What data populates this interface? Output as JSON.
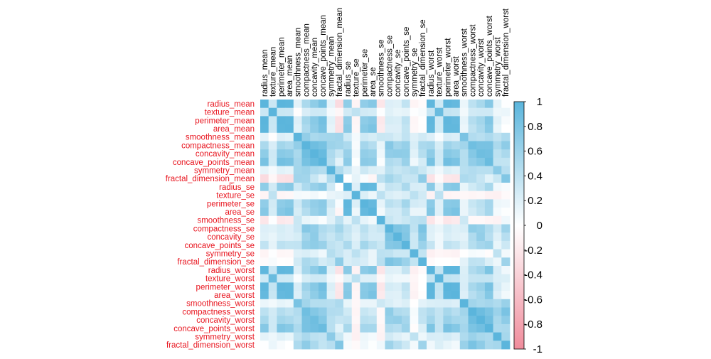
{
  "chart_data": {
    "type": "heatmap",
    "title": "",
    "variables": [
      "radius_mean",
      "texture_mean",
      "perimeter_mean",
      "area_mean",
      "smoothness_mean",
      "compactness_mean",
      "concavity_mean",
      "concave_points_mean",
      "symmetry_mean",
      "fractal_dimension_mean",
      "radius_se",
      "texture_se",
      "perimeter_se",
      "area_se",
      "smoothness_se",
      "compactness_se",
      "concavity_se",
      "concave_points_se",
      "symmetry_se",
      "fractal_dimension_se",
      "radius_worst",
      "texture_worst",
      "perimeter_worst",
      "area_worst",
      "smoothness_worst",
      "compactness_worst",
      "concavity_worst",
      "concave_points_worst",
      "symmetry_worst",
      "fractal_dimension_worst"
    ],
    "matrix": [
      [
        1.0,
        0.32,
        1.0,
        0.99,
        0.17,
        0.51,
        0.68,
        0.82,
        0.15,
        -0.31,
        0.68,
        -0.1,
        0.67,
        0.74,
        -0.22,
        0.21,
        0.19,
        0.38,
        -0.1,
        -0.04,
        0.97,
        0.3,
        0.97,
        0.94,
        0.12,
        0.41,
        0.53,
        0.74,
        0.16,
        0.01
      ],
      [
        0.32,
        1.0,
        0.33,
        0.32,
        -0.02,
        0.24,
        0.3,
        0.29,
        0.07,
        -0.08,
        0.28,
        0.39,
        0.28,
        0.26,
        0.01,
        0.19,
        0.14,
        0.16,
        0.01,
        0.05,
        0.35,
        0.91,
        0.36,
        0.34,
        0.08,
        0.28,
        0.3,
        0.3,
        0.11,
        0.12
      ],
      [
        1.0,
        0.33,
        1.0,
        0.99,
        0.21,
        0.56,
        0.72,
        0.85,
        0.18,
        -0.26,
        0.69,
        -0.09,
        0.69,
        0.74,
        -0.2,
        0.25,
        0.23,
        0.41,
        -0.08,
        -0.01,
        0.97,
        0.3,
        0.97,
        0.94,
        0.15,
        0.46,
        0.56,
        0.77,
        0.19,
        0.05
      ],
      [
        0.99,
        0.32,
        0.99,
        1.0,
        0.18,
        0.5,
        0.69,
        0.82,
        0.15,
        -0.28,
        0.73,
        -0.07,
        0.73,
        0.8,
        -0.17,
        0.21,
        0.21,
        0.37,
        -0.07,
        -0.02,
        0.96,
        0.29,
        0.96,
        0.96,
        0.12,
        0.39,
        0.51,
        0.72,
        0.14,
        0.0
      ],
      [
        0.17,
        -0.02,
        0.21,
        0.18,
        1.0,
        0.66,
        0.52,
        0.55,
        0.56,
        0.58,
        0.3,
        0.07,
        0.3,
        0.25,
        0.33,
        0.32,
        0.25,
        0.38,
        0.2,
        0.28,
        0.21,
        0.04,
        0.24,
        0.21,
        0.81,
        0.47,
        0.43,
        0.5,
        0.39,
        0.5
      ],
      [
        0.51,
        0.24,
        0.56,
        0.5,
        0.66,
        1.0,
        0.88,
        0.83,
        0.6,
        0.57,
        0.5,
        0.05,
        0.55,
        0.46,
        0.14,
        0.74,
        0.57,
        0.64,
        0.23,
        0.51,
        0.54,
        0.25,
        0.59,
        0.51,
        0.57,
        0.87,
        0.82,
        0.82,
        0.51,
        0.69
      ],
      [
        0.68,
        0.3,
        0.72,
        0.69,
        0.52,
        0.88,
        1.0,
        0.92,
        0.5,
        0.34,
        0.63,
        0.08,
        0.66,
        0.62,
        0.1,
        0.67,
        0.69,
        0.68,
        0.18,
        0.45,
        0.69,
        0.3,
        0.73,
        0.68,
        0.45,
        0.75,
        0.88,
        0.86,
        0.41,
        0.51
      ],
      [
        0.82,
        0.29,
        0.85,
        0.82,
        0.55,
        0.83,
        0.92,
        1.0,
        0.46,
        0.17,
        0.7,
        0.02,
        0.71,
        0.69,
        0.03,
        0.49,
        0.44,
        0.62,
        0.1,
        0.26,
        0.83,
        0.29,
        0.86,
        0.81,
        0.45,
        0.67,
        0.75,
        0.91,
        0.38,
        0.37
      ],
      [
        0.15,
        0.07,
        0.18,
        0.15,
        0.56,
        0.6,
        0.5,
        0.46,
        1.0,
        0.48,
        0.3,
        0.13,
        0.31,
        0.22,
        0.19,
        0.42,
        0.34,
        0.39,
        0.45,
        0.33,
        0.19,
        0.09,
        0.22,
        0.18,
        0.43,
        0.47,
        0.43,
        0.43,
        0.7,
        0.44
      ],
      [
        -0.31,
        -0.08,
        -0.26,
        -0.28,
        0.58,
        0.57,
        0.34,
        0.17,
        0.48,
        1.0,
        0.0,
        0.16,
        0.04,
        -0.09,
        0.4,
        0.56,
        0.45,
        0.34,
        0.35,
        0.69,
        -0.25,
        -0.05,
        -0.21,
        -0.23,
        0.5,
        0.46,
        0.35,
        0.18,
        0.33,
        0.77
      ],
      [
        0.68,
        0.28,
        0.69,
        0.73,
        0.3,
        0.5,
        0.63,
        0.7,
        0.3,
        0.0,
        1.0,
        0.21,
        0.97,
        0.95,
        0.16,
        0.36,
        0.33,
        0.51,
        0.24,
        0.23,
        0.72,
        0.19,
        0.72,
        0.75,
        0.14,
        0.29,
        0.38,
        0.53,
        0.09,
        0.05
      ],
      [
        -0.1,
        0.39,
        -0.09,
        -0.07,
        0.07,
        0.05,
        0.08,
        0.02,
        0.13,
        0.16,
        0.21,
        1.0,
        0.22,
        0.11,
        0.4,
        0.23,
        0.19,
        0.23,
        0.41,
        0.28,
        -0.11,
        0.41,
        -0.1,
        -0.08,
        -0.07,
        -0.09,
        -0.07,
        -0.12,
        -0.13,
        -0.05
      ],
      [
        0.67,
        0.28,
        0.69,
        0.73,
        0.3,
        0.55,
        0.66,
        0.71,
        0.31,
        0.04,
        0.97,
        0.22,
        1.0,
        0.94,
        0.15,
        0.42,
        0.36,
        0.56,
        0.27,
        0.24,
        0.7,
        0.2,
        0.72,
        0.73,
        0.13,
        0.34,
        0.42,
        0.55,
        0.11,
        0.09
      ],
      [
        0.74,
        0.26,
        0.74,
        0.8,
        0.25,
        0.46,
        0.62,
        0.69,
        0.22,
        -0.09,
        0.95,
        0.11,
        0.94,
        1.0,
        0.08,
        0.28,
        0.27,
        0.42,
        0.13,
        0.13,
        0.76,
        0.2,
        0.76,
        0.81,
        0.13,
        0.28,
        0.39,
        0.54,
        0.07,
        0.02
      ],
      [
        -0.22,
        0.01,
        -0.2,
        -0.17,
        0.33,
        0.14,
        0.1,
        0.03,
        0.19,
        0.4,
        0.16,
        0.4,
        0.15,
        0.08,
        1.0,
        0.34,
        0.27,
        0.33,
        0.41,
        0.43,
        -0.23,
        -0.07,
        -0.22,
        -0.18,
        0.31,
        -0.06,
        -0.06,
        -0.1,
        -0.11,
        0.1
      ],
      [
        0.21,
        0.19,
        0.25,
        0.21,
        0.32,
        0.74,
        0.67,
        0.49,
        0.42,
        0.56,
        0.36,
        0.23,
        0.42,
        0.28,
        0.34,
        1.0,
        0.8,
        0.74,
        0.39,
        0.8,
        0.2,
        0.14,
        0.26,
        0.2,
        0.23,
        0.68,
        0.64,
        0.48,
        0.28,
        0.59
      ],
      [
        0.19,
        0.14,
        0.23,
        0.21,
        0.25,
        0.57,
        0.69,
        0.44,
        0.34,
        0.45,
        0.33,
        0.19,
        0.36,
        0.27,
        0.27,
        0.8,
        1.0,
        0.77,
        0.31,
        0.73,
        0.19,
        0.1,
        0.23,
        0.19,
        0.17,
        0.48,
        0.66,
        0.44,
        0.2,
        0.44
      ],
      [
        0.38,
        0.16,
        0.41,
        0.37,
        0.38,
        0.64,
        0.68,
        0.62,
        0.39,
        0.34,
        0.51,
        0.23,
        0.56,
        0.42,
        0.33,
        0.74,
        0.77,
        1.0,
        0.31,
        0.61,
        0.36,
        0.09,
        0.39,
        0.34,
        0.22,
        0.45,
        0.55,
        0.6,
        0.14,
        0.31
      ],
      [
        -0.1,
        0.01,
        -0.08,
        -0.07,
        0.2,
        0.23,
        0.18,
        0.1,
        0.45,
        0.35,
        0.24,
        0.41,
        0.27,
        0.13,
        0.41,
        0.39,
        0.31,
        0.31,
        1.0,
        0.37,
        -0.13,
        -0.08,
        -0.1,
        -0.11,
        -0.01,
        0.06,
        0.04,
        -0.03,
        0.39,
        0.08
      ],
      [
        -0.04,
        0.05,
        -0.01,
        -0.02,
        0.28,
        0.51,
        0.45,
        0.26,
        0.33,
        0.69,
        0.23,
        0.28,
        0.24,
        0.13,
        0.43,
        0.8,
        0.73,
        0.61,
        0.37,
        1.0,
        -0.04,
        -0.0,
        -0.0,
        -0.02,
        0.17,
        0.39,
        0.38,
        0.22,
        0.11,
        0.59
      ],
      [
        0.97,
        0.35,
        0.97,
        0.96,
        0.21,
        0.54,
        0.69,
        0.83,
        0.19,
        -0.25,
        0.72,
        -0.11,
        0.7,
        0.76,
        -0.23,
        0.2,
        0.19,
        0.36,
        -0.13,
        -0.04,
        1.0,
        0.36,
        0.99,
        0.98,
        0.22,
        0.48,
        0.57,
        0.79,
        0.24,
        0.09
      ],
      [
        0.3,
        0.91,
        0.3,
        0.29,
        0.04,
        0.25,
        0.3,
        0.29,
        0.09,
        -0.05,
        0.19,
        0.41,
        0.2,
        0.2,
        -0.07,
        0.14,
        0.1,
        0.09,
        -0.08,
        -0.0,
        0.36,
        1.0,
        0.37,
        0.35,
        0.23,
        0.36,
        0.37,
        0.36,
        0.23,
        0.22
      ],
      [
        0.97,
        0.36,
        0.97,
        0.96,
        0.24,
        0.59,
        0.73,
        0.86,
        0.22,
        -0.21,
        0.72,
        -0.1,
        0.72,
        0.76,
        -0.22,
        0.26,
        0.23,
        0.39,
        -0.1,
        -0.0,
        0.99,
        0.37,
        1.0,
        0.98,
        0.24,
        0.53,
        0.62,
        0.82,
        0.27,
        0.14
      ],
      [
        0.94,
        0.34,
        0.94,
        0.96,
        0.21,
        0.51,
        0.68,
        0.81,
        0.18,
        -0.23,
        0.75,
        -0.08,
        0.73,
        0.81,
        -0.18,
        0.2,
        0.19,
        0.34,
        -0.11,
        -0.02,
        0.98,
        0.35,
        0.98,
        1.0,
        0.21,
        0.44,
        0.54,
        0.75,
        0.21,
        0.08
      ],
      [
        0.12,
        0.08,
        0.15,
        0.12,
        0.81,
        0.57,
        0.45,
        0.45,
        0.43,
        0.5,
        0.14,
        -0.07,
        0.13,
        0.13,
        0.31,
        0.23,
        0.17,
        0.22,
        -0.01,
        0.17,
        0.22,
        0.23,
        0.24,
        0.21,
        1.0,
        0.57,
        0.52,
        0.55,
        0.49,
        0.62
      ],
      [
        0.41,
        0.28,
        0.46,
        0.39,
        0.47,
        0.87,
        0.75,
        0.67,
        0.47,
        0.46,
        0.29,
        -0.09,
        0.34,
        0.28,
        -0.06,
        0.68,
        0.48,
        0.45,
        0.06,
        0.39,
        0.48,
        0.36,
        0.53,
        0.44,
        0.57,
        1.0,
        0.89,
        0.8,
        0.61,
        0.81
      ],
      [
        0.53,
        0.3,
        0.56,
        0.51,
        0.43,
        0.82,
        0.88,
        0.75,
        0.43,
        0.35,
        0.38,
        -0.07,
        0.42,
        0.39,
        -0.06,
        0.64,
        0.66,
        0.55,
        0.04,
        0.38,
        0.57,
        0.37,
        0.62,
        0.54,
        0.52,
        0.89,
        1.0,
        0.86,
        0.53,
        0.69
      ],
      [
        0.74,
        0.3,
        0.77,
        0.72,
        0.5,
        0.82,
        0.86,
        0.91,
        0.43,
        0.18,
        0.53,
        -0.12,
        0.55,
        0.54,
        -0.1,
        0.48,
        0.44,
        0.6,
        -0.03,
        0.22,
        0.79,
        0.36,
        0.82,
        0.75,
        0.55,
        0.8,
        0.86,
        1.0,
        0.5,
        0.51
      ],
      [
        0.16,
        0.11,
        0.19,
        0.14,
        0.39,
        0.51,
        0.41,
        0.38,
        0.7,
        0.33,
        0.09,
        -0.13,
        0.11,
        0.07,
        -0.11,
        0.28,
        0.2,
        0.14,
        0.39,
        0.11,
        0.24,
        0.23,
        0.27,
        0.21,
        0.49,
        0.61,
        0.53,
        0.5,
        1.0,
        0.54
      ],
      [
        0.01,
        0.12,
        0.05,
        0.0,
        0.5,
        0.69,
        0.51,
        0.37,
        0.44,
        0.77,
        0.05,
        -0.05,
        0.09,
        0.02,
        0.1,
        0.59,
        0.44,
        0.31,
        0.08,
        0.59,
        0.09,
        0.22,
        0.14,
        0.08,
        0.62,
        0.81,
        0.69,
        0.51,
        0.54,
        1.0
      ]
    ],
    "colorbar": {
      "range": [
        -1,
        1
      ],
      "tick_labels": [
        "1",
        "0.8",
        "0.6",
        "0.4",
        "0.2",
        "0",
        "-0.2",
        "-0.4",
        "-0.6",
        "-0.8",
        "-1"
      ],
      "tick_values": [
        1,
        0.8,
        0.6,
        0.4,
        0.2,
        0,
        -0.2,
        -0.4,
        -0.6,
        -0.8,
        -1
      ]
    },
    "colors": {
      "positive": "#5bb5dc",
      "negative": "#f08c9c",
      "neutral": "#ffffff",
      "row_label": "#e8141e",
      "col_label": "#000000"
    },
    "legend_position": "right"
  }
}
